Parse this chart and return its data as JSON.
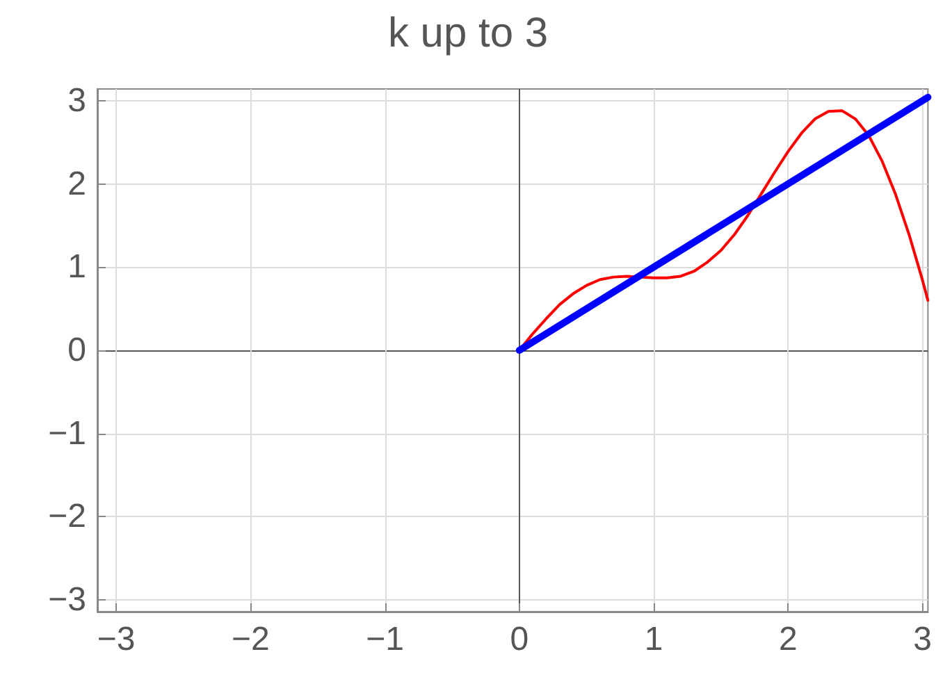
{
  "chart_data": {
    "type": "line",
    "title": "k up to 3",
    "xlim": [
      -3.14,
      3.04
    ],
    "ylim": [
      -3.14,
      3.14
    ],
    "xticks": [
      -3,
      -2,
      -1,
      0,
      1,
      2,
      3
    ],
    "yticks": [
      -3,
      -2,
      -1,
      0,
      1,
      2,
      3
    ],
    "grid": true,
    "marker": "none",
    "line_style": "solid",
    "series": [
      {
        "color": "#ff0000",
        "x": [
          0,
          0.1,
          0.2,
          0.3,
          0.4,
          0.5,
          0.6,
          0.7,
          0.8,
          0.9,
          1.0,
          1.1,
          1.2,
          1.3,
          1.4,
          1.5,
          1.6,
          1.7,
          1.8,
          1.9,
          2.0,
          2.1,
          2.2,
          2.3,
          2.4,
          2.5,
          2.6,
          2.7,
          2.8,
          2.9,
          3.0,
          3.04
        ],
        "values": [
          0,
          0.2,
          0.38,
          0.55,
          0.68,
          0.78,
          0.85,
          0.88,
          0.89,
          0.88,
          0.87,
          0.87,
          0.89,
          0.95,
          1.06,
          1.2,
          1.39,
          1.62,
          1.88,
          2.14,
          2.39,
          2.61,
          2.78,
          2.87,
          2.88,
          2.78,
          2.58,
          2.27,
          1.87,
          1.39,
          0.84,
          0.6
        ]
      },
      {
        "color": "#0000ff",
        "x": [
          0,
          3.04
        ],
        "values": [
          0,
          3.04
        ]
      }
    ]
  }
}
